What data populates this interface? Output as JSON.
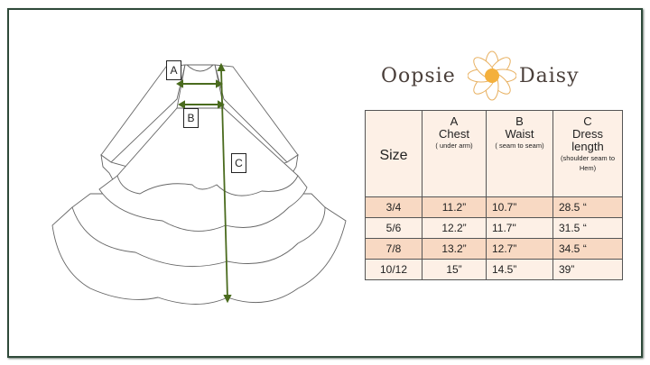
{
  "diagram": {
    "labels": {
      "a": "A",
      "b": "B",
      "c": "C"
    },
    "arrow_color": "#4a6b1e"
  },
  "logo": {
    "left": "Oopsie",
    "right": "Daisy"
  },
  "table": {
    "headers": [
      {
        "letter": "",
        "name": "Size",
        "note": ""
      },
      {
        "letter": "A",
        "name": "Chest",
        "note": "( under arm)"
      },
      {
        "letter": "B",
        "name": "Waist",
        "note": "( seam to seam)"
      },
      {
        "letter": "C",
        "name": "Dress length",
        "note": "(shoulder seam to Hem)"
      }
    ],
    "rows": [
      [
        "3/4",
        "11.2”",
        "10.7”",
        "28.5 “"
      ],
      [
        "5/6",
        "12.2”",
        "11.7\"",
        "31.5 “"
      ],
      [
        "7/8",
        "13.2”",
        "12.7”",
        "34.5 “"
      ],
      [
        "10/12",
        "15”",
        "14.5”",
        "39”"
      ]
    ],
    "colors": {
      "header": "#fdf0e6",
      "highlight": "#f8d9c3"
    }
  }
}
